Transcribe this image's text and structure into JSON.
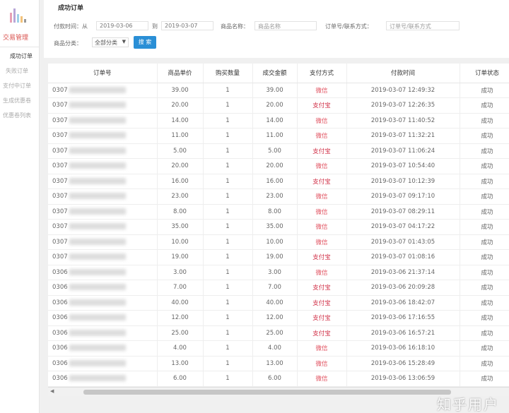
{
  "sidebar": {
    "section": "交易管理",
    "items": [
      {
        "label": "成功订单",
        "active": true
      },
      {
        "label": "失败订单"
      },
      {
        "label": "支付中订单"
      },
      {
        "label": "生成优惠卷"
      },
      {
        "label": "优惠卷列表"
      }
    ]
  },
  "header": {
    "title": "成功订单"
  },
  "filters": {
    "pay_time_label": "付款时间：从",
    "from_value": "2019-03-06",
    "to_label": "到",
    "to_value": "2019-03-07",
    "product_label": "商品名称：",
    "product_placeholder": "商品名称",
    "order_label": "订单号/联系方式：",
    "order_placeholder": "订单号/联系方式",
    "category_label": "商品分类：",
    "category_value": "全部分类",
    "search_label": "搜 索"
  },
  "table": {
    "columns": [
      "订单号",
      "商品单价",
      "购买数量",
      "成交金额",
      "支付方式",
      "付款时间",
      "订单状态"
    ],
    "rows": [
      [
        "0307",
        "39.00",
        "1",
        "39.00",
        "微信",
        "2019-03-07 12:49:32",
        "成功"
      ],
      [
        "0307",
        "20.00",
        "1",
        "20.00",
        "支付宝",
        "2019-03-07 12:26:35",
        "成功"
      ],
      [
        "0307",
        "14.00",
        "1",
        "14.00",
        "微信",
        "2019-03-07 11:40:52",
        "成功"
      ],
      [
        "0307",
        "11.00",
        "1",
        "11.00",
        "微信",
        "2019-03-07 11:32:21",
        "成功"
      ],
      [
        "0307",
        "5.00",
        "1",
        "5.00",
        "支付宝",
        "2019-03-07 11:06:24",
        "成功"
      ],
      [
        "0307",
        "20.00",
        "1",
        "20.00",
        "微信",
        "2019-03-07 10:54:40",
        "成功"
      ],
      [
        "0307",
        "16.00",
        "1",
        "16.00",
        "支付宝",
        "2019-03-07 10:12:39",
        "成功"
      ],
      [
        "0307",
        "23.00",
        "1",
        "23.00",
        "微信",
        "2019-03-07 09:17:10",
        "成功"
      ],
      [
        "0307",
        "8.00",
        "1",
        "8.00",
        "微信",
        "2019-03-07 08:29:11",
        "成功"
      ],
      [
        "0307",
        "35.00",
        "1",
        "35.00",
        "微信",
        "2019-03-07 04:17:22",
        "成功"
      ],
      [
        "0307",
        "10.00",
        "1",
        "10.00",
        "微信",
        "2019-03-07 01:43:05",
        "成功"
      ],
      [
        "0307",
        "19.00",
        "1",
        "19.00",
        "支付宝",
        "2019-03-07 01:08:16",
        "成功"
      ],
      [
        "0306",
        "3.00",
        "1",
        "3.00",
        "微信",
        "2019-03-06 21:37:14",
        "成功"
      ],
      [
        "0306",
        "7.00",
        "1",
        "7.00",
        "支付宝",
        "2019-03-06 20:09:28",
        "成功"
      ],
      [
        "0306",
        "40.00",
        "1",
        "40.00",
        "支付宝",
        "2019-03-06 18:42:07",
        "成功"
      ],
      [
        "0306",
        "12.00",
        "1",
        "12.00",
        "支付宝",
        "2019-03-06 17:16:55",
        "成功"
      ],
      [
        "0306",
        "25.00",
        "1",
        "25.00",
        "支付宝",
        "2019-03-06 16:57:21",
        "成功"
      ],
      [
        "0306",
        "4.00",
        "1",
        "4.00",
        "微信",
        "2019-03-06 16:18:10",
        "成功"
      ],
      [
        "0306",
        "13.00",
        "1",
        "13.00",
        "微信",
        "2019-03-06 15:28:49",
        "成功"
      ],
      [
        "0306",
        "6.00",
        "1",
        "6.00",
        "微信",
        "2019-03-06 13:06:59",
        "成功"
      ]
    ]
  },
  "watermark": "知乎用户",
  "colors": {
    "accent": "#2a8fd6",
    "sidebar_active": "#d9534f",
    "payment": "#d2334a"
  }
}
